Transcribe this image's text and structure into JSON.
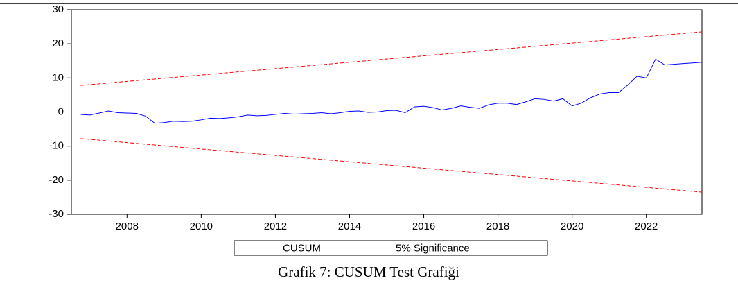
{
  "chart_data": {
    "type": "line",
    "caption": "Grafik 7: CUSUM Test Grafiği",
    "x": [
      2006.75,
      2007.0,
      2007.25,
      2007.5,
      2007.75,
      2008.0,
      2008.25,
      2008.5,
      2008.75,
      2009.0,
      2009.25,
      2009.5,
      2009.75,
      2010.0,
      2010.25,
      2010.5,
      2010.75,
      2011.0,
      2011.25,
      2011.5,
      2011.75,
      2012.0,
      2012.25,
      2012.5,
      2012.75,
      2013.0,
      2013.25,
      2013.5,
      2013.75,
      2014.0,
      2014.25,
      2014.5,
      2014.75,
      2015.0,
      2015.25,
      2015.5,
      2015.75,
      2016.0,
      2016.25,
      2016.5,
      2016.75,
      2017.0,
      2017.25,
      2017.5,
      2017.75,
      2018.0,
      2018.25,
      2018.5,
      2018.75,
      2019.0,
      2019.25,
      2019.5,
      2019.75,
      2020.0,
      2020.25,
      2020.5,
      2020.75,
      2021.0,
      2021.25,
      2021.5,
      2021.75,
      2022.0,
      2022.25,
      2022.5,
      2022.75,
      2023.0,
      2023.25,
      2023.5
    ],
    "series": [
      {
        "name": "CUSUM",
        "color": "#0000ff",
        "dash": false,
        "values": [
          -0.7,
          -0.9,
          -0.3,
          0.3,
          -0.2,
          -0.3,
          -0.4,
          -1.2,
          -3.3,
          -3.1,
          -2.7,
          -2.8,
          -2.7,
          -2.3,
          -1.8,
          -1.9,
          -1.7,
          -1.4,
          -0.9,
          -1.1,
          -1.0,
          -0.7,
          -0.4,
          -0.6,
          -0.5,
          -0.4,
          -0.2,
          -0.5,
          -0.2,
          0.2,
          0.3,
          -0.1,
          0.0,
          0.4,
          0.5,
          -0.2,
          1.5,
          1.7,
          1.3,
          0.6,
          1.1,
          1.8,
          1.4,
          1.1,
          2.1,
          2.6,
          2.6,
          2.2,
          3.0,
          3.9,
          3.7,
          3.2,
          3.9,
          1.8,
          2.6,
          4.2,
          5.3,
          5.7,
          5.7,
          7.9,
          10.5,
          10.0,
          15.5,
          13.8,
          14.0,
          14.2,
          14.4,
          14.6
        ]
      },
      {
        "name": "5% Significance",
        "color": "#ff0000",
        "dash": true,
        "x": [
          2006.75,
          2023.5
        ],
        "values": [
          7.8,
          23.5
        ],
        "values_lower": [
          -7.8,
          -23.5
        ]
      }
    ],
    "xlim": [
      2006.5,
      2023.5
    ],
    "xticks": [
      2008,
      2010,
      2012,
      2014,
      2016,
      2018,
      2020,
      2022
    ],
    "ylim": [
      -30,
      30
    ],
    "yticks": [
      -30,
      -20,
      -10,
      0,
      10,
      20,
      30
    ],
    "zero_line": true,
    "legend": "bottom"
  }
}
